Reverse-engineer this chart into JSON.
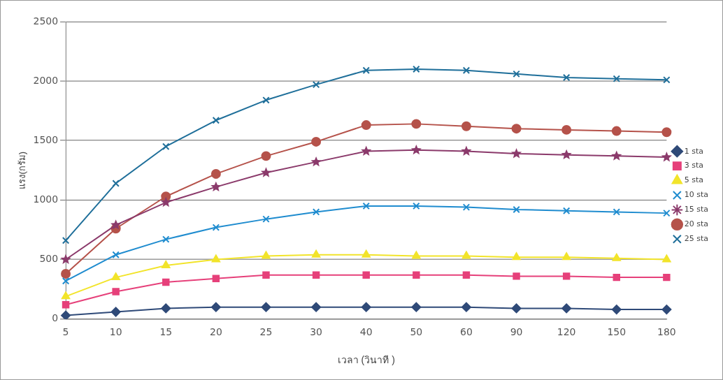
{
  "chart_data": {
    "type": "line",
    "xlabel": "เวลา (วินาที )",
    "ylabel": "แรง(กรัม)",
    "categories": [
      "5",
      "10",
      "15",
      "20",
      "25",
      "30",
      "40",
      "50",
      "60",
      "90",
      "120",
      "150",
      "180"
    ],
    "ylim": [
      0,
      2500
    ],
    "yticks": [
      0,
      500,
      1000,
      1500,
      2000,
      2500
    ],
    "grid": "y",
    "legend": "right",
    "series": [
      {
        "name": "1 sta",
        "color": "#2f4a78",
        "marker": "diamond",
        "values": [
          30,
          60,
          90,
          100,
          100,
          100,
          100,
          100,
          100,
          90,
          90,
          80,
          80
        ]
      },
      {
        "name": "3 sta",
        "color": "#e6407a",
        "marker": "square",
        "values": [
          120,
          230,
          310,
          340,
          370,
          370,
          370,
          370,
          370,
          360,
          360,
          350,
          350
        ]
      },
      {
        "name": "5 sta",
        "color": "#f2e42a",
        "marker": "triangle",
        "values": [
          190,
          350,
          450,
          500,
          530,
          540,
          540,
          530,
          530,
          520,
          520,
          510,
          500
        ]
      },
      {
        "name": "10 sta",
        "color": "#1f8ccf",
        "marker": "cross",
        "values": [
          320,
          540,
          670,
          770,
          840,
          900,
          950,
          950,
          940,
          920,
          910,
          900,
          890
        ]
      },
      {
        "name": "15 sta",
        "color": "#8b3a6b",
        "marker": "star",
        "values": [
          500,
          790,
          980,
          1110,
          1230,
          1320,
          1410,
          1420,
          1410,
          1390,
          1380,
          1370,
          1360
        ]
      },
      {
        "name": "20 sta",
        "color": "#b5524a",
        "marker": "circle",
        "values": [
          380,
          760,
          1030,
          1220,
          1370,
          1490,
          1630,
          1640,
          1620,
          1600,
          1590,
          1580,
          1570
        ]
      },
      {
        "name": "25 sta",
        "color": "#1f6f9a",
        "marker": "cross",
        "values": [
          660,
          1140,
          1450,
          1670,
          1840,
          1970,
          2090,
          2100,
          2090,
          2060,
          2030,
          2020,
          2010
        ]
      }
    ]
  }
}
